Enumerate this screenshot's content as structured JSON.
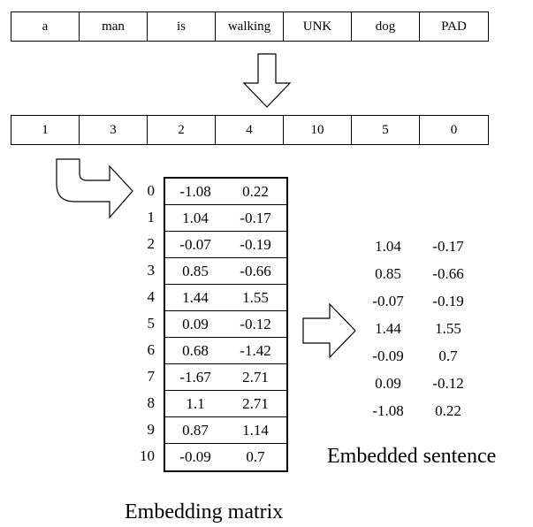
{
  "tokens": [
    "a",
    "man",
    "is",
    "walking",
    "UNK",
    "dog",
    "PAD"
  ],
  "ids": [
    "1",
    "3",
    "2",
    "4",
    "10",
    "5",
    "0"
  ],
  "matrix": {
    "indices": [
      "0",
      "1",
      "2",
      "3",
      "4",
      "5",
      "6",
      "7",
      "8",
      "9",
      "10"
    ],
    "rows": [
      [
        "-1.08",
        "0.22"
      ],
      [
        "1.04",
        "-0.17"
      ],
      [
        "-0.07",
        "-0.19"
      ],
      [
        "0.85",
        "-0.66"
      ],
      [
        "1.44",
        "1.55"
      ],
      [
        "0.09",
        "-0.12"
      ],
      [
        "0.68",
        "-1.42"
      ],
      [
        "-1.67",
        "2.71"
      ],
      [
        "1.1",
        "2.71"
      ],
      [
        "0.87",
        "1.14"
      ],
      [
        "-0.09",
        "0.7"
      ]
    ],
    "caption": "Embedding matrix"
  },
  "sentence": {
    "rows": [
      [
        "1.04",
        "-0.17"
      ],
      [
        "0.85",
        "-0.66"
      ],
      [
        "-0.07",
        "-0.19"
      ],
      [
        "1.44",
        "1.55"
      ],
      [
        "-0.09",
        "0.7"
      ],
      [
        "0.09",
        "-0.12"
      ],
      [
        "-1.08",
        "0.22"
      ]
    ],
    "caption": "Embedded sentence"
  }
}
